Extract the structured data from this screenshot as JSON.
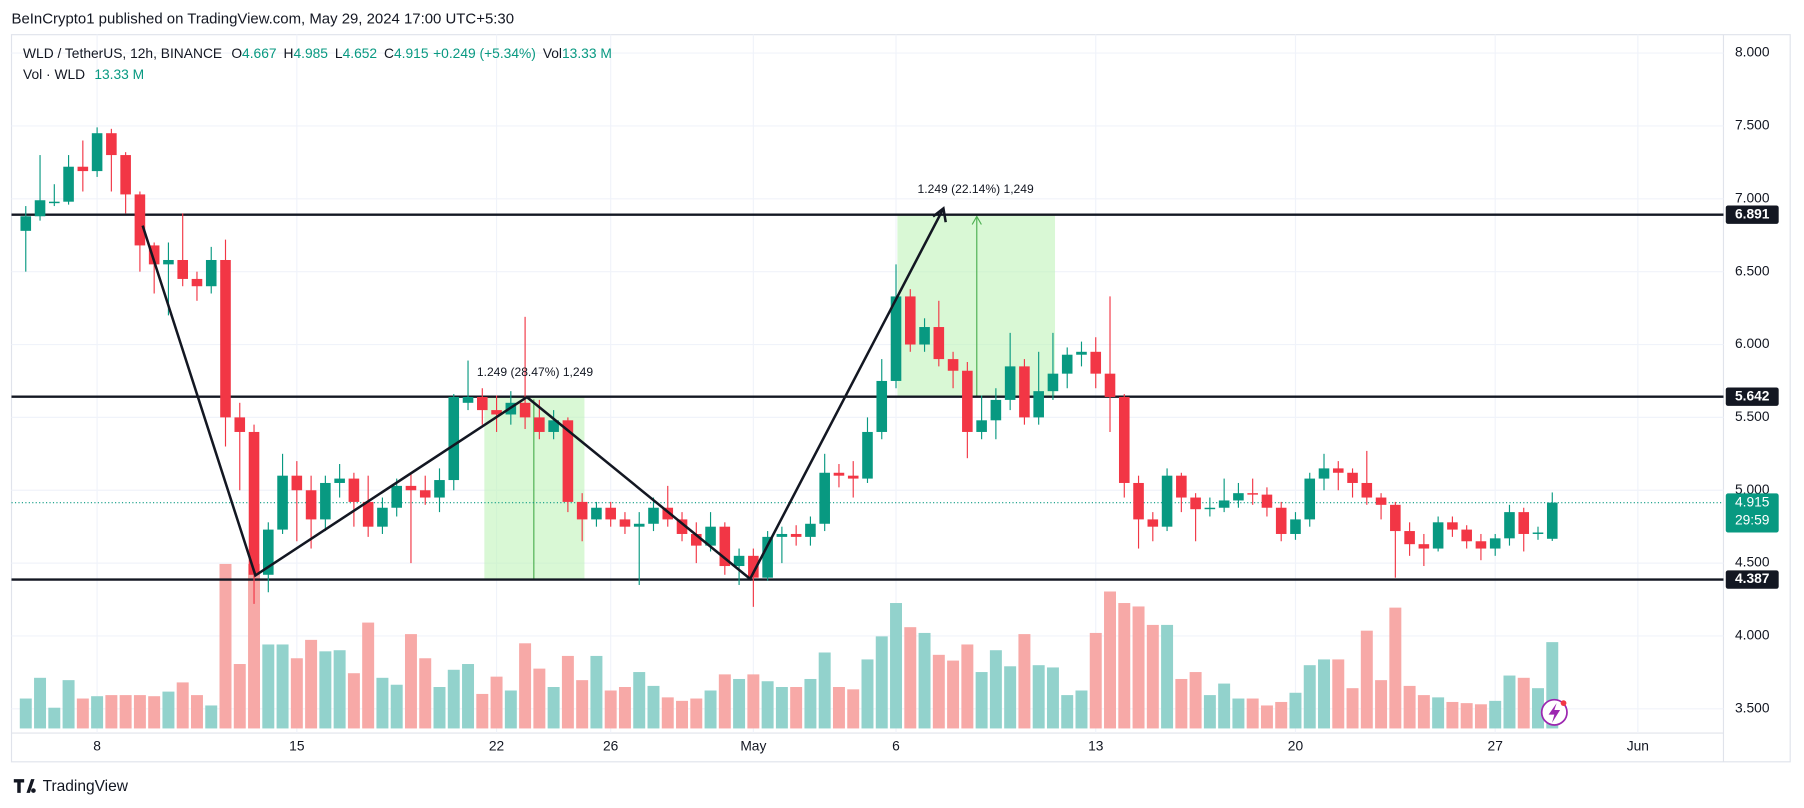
{
  "header": {
    "published": "BeInCrypto1 published on TradingView.com, May 29, 2024 17:00 UTC+5:30"
  },
  "chart_data": {
    "type": "candlestick",
    "title": "WLD / TetherUS, 12h, BINANCE",
    "legend": {
      "o": "O",
      "h": "H",
      "l": "L",
      "c": "C",
      "change": "+0.249 (+5.34%)",
      "vol": "Vol",
      "vol_value": "13.33 M",
      "volume_title": "Vol · WLD"
    },
    "open": [
      6.78,
      6.88,
      6.97,
      6.98,
      7.22,
      7.19,
      7.45,
      7.3,
      7.03,
      6.68,
      6.55,
      6.58,
      6.45,
      6.4,
      6.58,
      5.5,
      5.4,
      4.42,
      4.73,
      5.1,
      5.0,
      4.8,
      5.05,
      5.08,
      4.92,
      4.75,
      4.88,
      5.03,
      5.0,
      4.95,
      5.07,
      5.6,
      5.64,
      5.55,
      5.52,
      5.6,
      5.5,
      5.4,
      5.48,
      4.92,
      4.8,
      4.88,
      4.8,
      4.75,
      4.77,
      4.88,
      4.8,
      4.7,
      4.62,
      4.75,
      4.48,
      4.55,
      4.4,
      4.68,
      4.7,
      4.68,
      4.77,
      5.12,
      5.1,
      5.08,
      5.4,
      5.75,
      6.33,
      6.0,
      6.12,
      5.9,
      5.82,
      5.4,
      5.48,
      5.62,
      5.85,
      5.5,
      5.68,
      5.8,
      5.93,
      5.95,
      5.8,
      5.64,
      5.05,
      4.8,
      4.75,
      5.1,
      4.95,
      4.87,
      4.88,
      4.93,
      4.98,
      4.97,
      4.88,
      4.7,
      4.8,
      5.08,
      5.15,
      5.12,
      5.05,
      4.95,
      4.9,
      4.72,
      4.63,
      4.6,
      4.78,
      4.73,
      4.65,
      4.6,
      4.67,
      4.85,
      4.7,
      4.667
    ],
    "high": [
      6.95,
      7.3,
      7.1,
      7.3,
      7.4,
      7.49,
      7.48,
      7.32,
      7.05,
      6.7,
      6.7,
      6.9,
      6.5,
      6.67,
      6.72,
      5.6,
      5.45,
      4.78,
      5.25,
      5.2,
      5.1,
      5.1,
      5.18,
      5.12,
      5.1,
      4.95,
      5.08,
      5.12,
      5.1,
      5.15,
      5.66,
      5.89,
      5.7,
      5.65,
      5.68,
      6.19,
      5.62,
      5.55,
      5.5,
      4.98,
      4.92,
      4.92,
      4.85,
      4.85,
      4.95,
      5.03,
      4.85,
      4.78,
      4.85,
      4.78,
      4.6,
      4.6,
      4.72,
      4.75,
      4.76,
      4.82,
      5.25,
      5.18,
      5.2,
      5.5,
      5.9,
      6.55,
      6.38,
      6.18,
      6.3,
      5.95,
      5.88,
      5.65,
      5.7,
      6.08,
      5.9,
      5.95,
      6.08,
      5.98,
      6.02,
      6.05,
      6.33,
      5.66,
      5.1,
      4.85,
      5.15,
      5.12,
      4.98,
      4.95,
      5.08,
      5.05,
      5.08,
      5.02,
      4.92,
      4.85,
      5.12,
      5.25,
      5.2,
      5.15,
      5.27,
      4.98,
      4.92,
      4.78,
      4.7,
      4.82,
      4.82,
      4.76,
      4.7,
      4.7,
      4.9,
      4.88,
      4.75,
      4.985
    ],
    "low": [
      6.5,
      6.85,
      6.95,
      6.96,
      7.05,
      7.15,
      7.05,
      6.9,
      6.5,
      6.35,
      6.2,
      6.4,
      6.3,
      6.35,
      5.3,
      5.0,
      4.22,
      4.3,
      4.7,
      4.65,
      4.6,
      4.72,
      4.95,
      4.75,
      4.68,
      4.7,
      4.82,
      4.5,
      4.9,
      4.85,
      5.0,
      5.55,
      5.45,
      5.4,
      5.45,
      5.42,
      5.35,
      5.35,
      4.85,
      4.65,
      4.75,
      4.75,
      4.7,
      4.35,
      4.72,
      4.75,
      4.65,
      4.5,
      4.58,
      4.42,
      4.35,
      4.2,
      4.38,
      4.5,
      4.62,
      4.62,
      4.72,
      5.02,
      4.95,
      5.05,
      5.35,
      5.7,
      5.95,
      5.95,
      5.85,
      5.7,
      5.22,
      5.35,
      5.35,
      5.55,
      5.45,
      5.45,
      5.62,
      5.7,
      5.85,
      5.7,
      5.4,
      4.95,
      4.6,
      4.65,
      4.72,
      4.85,
      4.65,
      4.82,
      4.85,
      4.88,
      4.9,
      4.82,
      4.65,
      4.66,
      4.75,
      5.0,
      5.0,
      4.95,
      4.9,
      4.8,
      4.4,
      4.55,
      4.48,
      4.58,
      4.68,
      4.6,
      4.52,
      4.55,
      4.62,
      4.58,
      4.66,
      4.652
    ],
    "close": [
      6.88,
      6.99,
      6.98,
      7.22,
      7.19,
      7.45,
      7.3,
      7.03,
      6.68,
      6.55,
      6.58,
      6.45,
      6.4,
      6.58,
      5.5,
      5.4,
      4.42,
      4.73,
      5.1,
      5.0,
      4.8,
      5.05,
      5.08,
      4.92,
      4.75,
      4.88,
      5.03,
      5.0,
      4.95,
      5.07,
      5.64,
      5.64,
      5.55,
      5.52,
      5.6,
      5.5,
      5.4,
      5.48,
      4.92,
      4.8,
      4.88,
      4.8,
      4.75,
      4.77,
      4.88,
      4.8,
      4.7,
      4.62,
      4.75,
      4.48,
      4.55,
      4.4,
      4.68,
      4.7,
      4.68,
      4.77,
      5.12,
      5.1,
      5.08,
      5.4,
      5.75,
      6.33,
      6.0,
      6.12,
      5.9,
      5.82,
      5.4,
      5.48,
      5.62,
      5.85,
      5.5,
      5.68,
      5.8,
      5.93,
      5.95,
      5.8,
      5.64,
      5.05,
      4.8,
      4.75,
      5.1,
      4.95,
      4.87,
      4.88,
      4.93,
      4.98,
      4.97,
      4.88,
      4.7,
      4.8,
      5.08,
      5.15,
      5.12,
      5.05,
      4.95,
      4.9,
      4.72,
      4.63,
      4.6,
      4.78,
      4.73,
      4.65,
      4.6,
      4.67,
      4.85,
      4.7,
      4.71,
      4.915
    ],
    "volume": [
      4.62,
      7.82,
      3.2,
      7.46,
      4.62,
      4.98,
      5.15,
      5.15,
      5.15,
      4.98,
      5.69,
      7.11,
      5.15,
      3.55,
      25.41,
      9.95,
      25.41,
      12.97,
      12.97,
      10.84,
      13.68,
      11.91,
      12.08,
      8.53,
      16.35,
      7.82,
      6.75,
      14.57,
      10.84,
      6.4,
      9.06,
      9.95,
      5.33,
      8.0,
      5.86,
      13.15,
      9.24,
      6.4,
      11.2,
      7.46,
      11.2,
      5.86,
      6.4,
      8.71,
      6.57,
      4.8,
      4.26,
      4.62,
      5.86,
      8.35,
      7.64,
      8.35,
      7.29,
      6.4,
      6.4,
      7.64,
      11.73,
      6.4,
      6.04,
      10.66,
      14.22,
      19.37,
      15.64,
      14.75,
      11.37,
      10.48,
      12.97,
      8.71,
      12.08,
      9.6,
      14.57,
      9.77,
      9.42,
      5.15,
      5.86,
      14.75,
      21.15,
      19.37,
      18.84,
      15.99,
      15.99,
      7.64,
      8.71,
      5.15,
      6.93,
      4.62,
      4.62,
      3.55,
      4.09,
      5.51,
      9.77,
      10.66,
      10.66,
      6.22,
      15.1,
      7.46,
      18.66,
      6.57,
      5.15,
      4.8,
      4.09,
      3.91,
      3.73,
      4.26,
      8.17,
      7.82,
      6.22,
      13.33
    ],
    "up_color": "#089981",
    "down_color": "#f23645",
    "volume_up_color": "#92d2cc",
    "volume_down_color": "#f7a9a7",
    "xlim": [
      -1,
      119
    ],
    "xticks": [
      {
        "value": 5,
        "label": "8"
      },
      {
        "value": 19,
        "label": "15"
      },
      {
        "value": 33,
        "label": "22"
      },
      {
        "value": 41,
        "label": "26"
      },
      {
        "value": 51,
        "label": "May"
      },
      {
        "value": 61,
        "label": "6"
      },
      {
        "value": 75,
        "label": "13"
      },
      {
        "value": 89,
        "label": "20"
      },
      {
        "value": 103,
        "label": "27"
      },
      {
        "value": 113,
        "label": "Jun"
      }
    ],
    "ylim": [
      3.334,
      8.126
    ],
    "yticks": [
      {
        "value": 3.5,
        "label": "3.500"
      },
      {
        "value": 4,
        "label": "4.000"
      },
      {
        "value": 4.5,
        "label": "4.500"
      },
      {
        "value": 5,
        "label": "5.000"
      },
      {
        "value": 5.5,
        "label": "5.500"
      },
      {
        "value": 6,
        "label": "6.000"
      },
      {
        "value": 6.5,
        "label": "6.500"
      },
      {
        "value": 7,
        "label": "7.000"
      },
      {
        "value": 7.5,
        "label": "7.500"
      },
      {
        "value": 8,
        "label": "8.000"
      }
    ],
    "levels": [
      6.891,
      5.642,
      4.387
    ],
    "countdown": "29:59",
    "annotations": [
      "1.249 (28.47%) 1,249",
      "1.249 (22.14%) 1,249"
    ],
    "grid": true
  },
  "footer": {
    "logo": "TradingView"
  }
}
